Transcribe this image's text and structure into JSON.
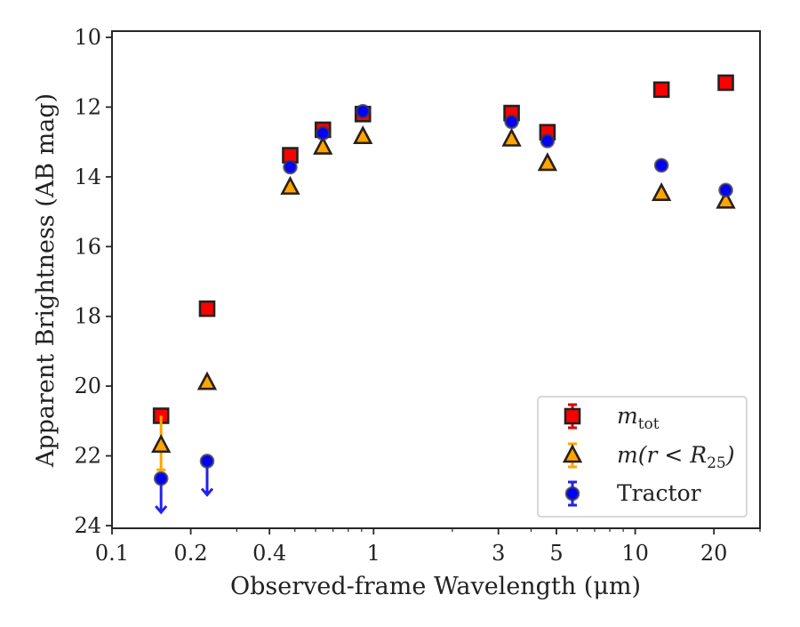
{
  "chart_data": {
    "type": "scatter",
    "xscale": "log",
    "yinverted": true,
    "xlim": [
      0.1,
      30
    ],
    "ylim": [
      24,
      10
    ],
    "xlabel": "Observed-frame Wavelength (μm)",
    "ylabel": "Apparent Brightness (AB mag)",
    "grid": false,
    "legend_position": "lower right",
    "xticks": [
      {
        "value": 0.1,
        "label": "0.1"
      },
      {
        "value": 0.2,
        "label": "0.2"
      },
      {
        "value": 0.4,
        "label": "0.4"
      },
      {
        "value": 1,
        "label": "1"
      },
      {
        "value": 3,
        "label": "3"
      },
      {
        "value": 5,
        "label": "5"
      },
      {
        "value": 10,
        "label": "10"
      },
      {
        "value": 20,
        "label": "20"
      }
    ],
    "yticks": [
      {
        "value": 10,
        "label": "10"
      },
      {
        "value": 12,
        "label": "12"
      },
      {
        "value": 14,
        "label": "14"
      },
      {
        "value": 16,
        "label": "16"
      },
      {
        "value": 18,
        "label": "18"
      },
      {
        "value": 20,
        "label": "20"
      },
      {
        "value": 22,
        "label": "22"
      },
      {
        "value": 24,
        "label": "24"
      }
    ],
    "series": [
      {
        "name": "m_tot",
        "legend_main": "m",
        "legend_sub": "tot",
        "marker": "square",
        "color": "#ff0000",
        "errcolor": "#dd0000",
        "points": [
          {
            "x": 0.154,
            "y": 20.85
          },
          {
            "x": 0.231,
            "y": 17.78
          },
          {
            "x": 0.48,
            "y": 13.38
          },
          {
            "x": 0.64,
            "y": 12.65
          },
          {
            "x": 0.91,
            "y": 12.2
          },
          {
            "x": 3.37,
            "y": 12.17
          },
          {
            "x": 4.62,
            "y": 12.72
          },
          {
            "x": 12.6,
            "y": 11.5
          },
          {
            "x": 22.2,
            "y": 11.3
          }
        ]
      },
      {
        "name": "m(r<R25)",
        "legend_main": "m(r < R",
        "legend_sub": "25",
        "legend_tail": ")",
        "marker": "triangle",
        "color": "#ffa500",
        "errcolor": "#ffa500",
        "points": [
          {
            "x": 0.154,
            "y": 21.7,
            "err": [
              20.85,
              22.4
            ]
          },
          {
            "x": 0.231,
            "y": 19.9
          },
          {
            "x": 0.48,
            "y": 14.3
          },
          {
            "x": 0.64,
            "y": 13.15
          },
          {
            "x": 0.91,
            "y": 12.85
          },
          {
            "x": 3.37,
            "y": 12.92
          },
          {
            "x": 4.62,
            "y": 13.62
          },
          {
            "x": 12.6,
            "y": 14.48
          },
          {
            "x": 22.2,
            "y": 14.7
          }
        ]
      },
      {
        "name": "Tractor",
        "legend_main": "Tractor",
        "marker": "circle",
        "color": "#0000ff",
        "errcolor": "#2222dd",
        "points": [
          {
            "x": 0.154,
            "y": 22.65,
            "upper_limit": true
          },
          {
            "x": 0.231,
            "y": 22.15,
            "upper_limit": true
          },
          {
            "x": 0.48,
            "y": 13.72
          },
          {
            "x": 0.64,
            "y": 12.75
          },
          {
            "x": 0.91,
            "y": 12.12
          },
          {
            "x": 3.37,
            "y": 12.42
          },
          {
            "x": 4.62,
            "y": 12.97
          },
          {
            "x": 12.6,
            "y": 13.67
          },
          {
            "x": 22.2,
            "y": 14.38
          }
        ]
      }
    ]
  }
}
